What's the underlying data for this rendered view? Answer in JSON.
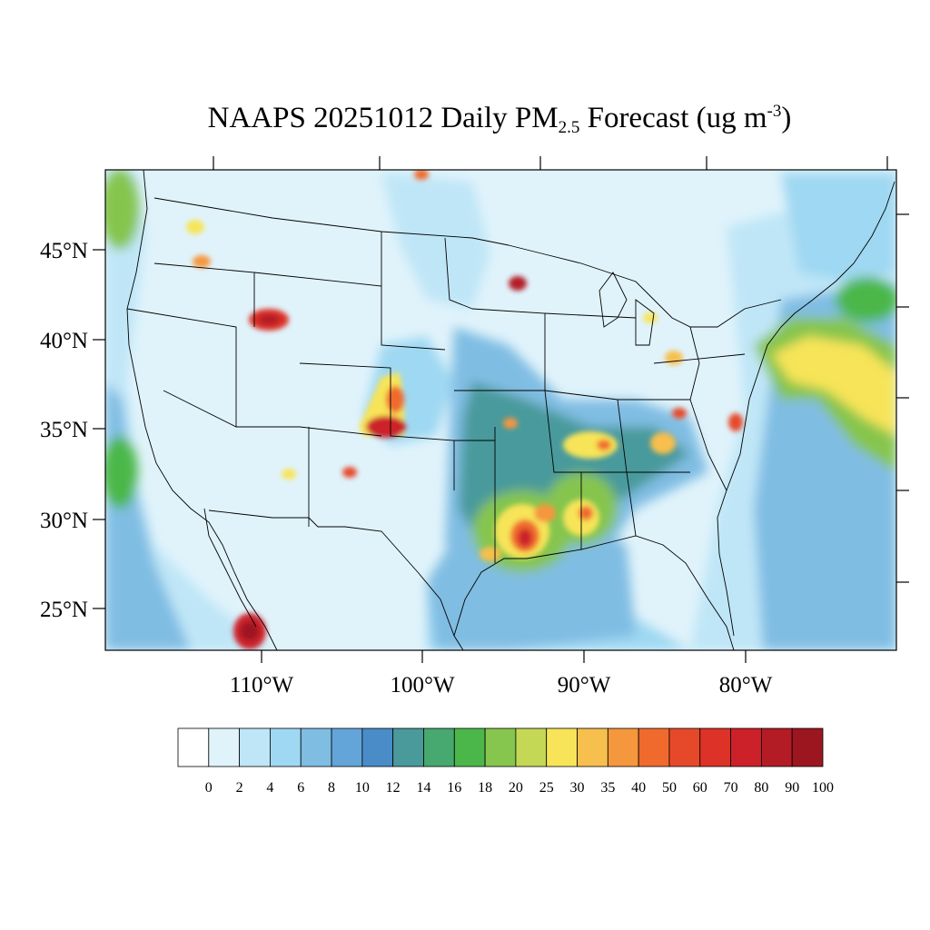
{
  "title": {
    "prefix": "NAAPS 20251012 Daily PM",
    "pm_subscript": "2.5",
    "middle": " Forecast (ug m",
    "unit_superscript": "-3",
    "suffix": ")"
  },
  "lat_labels": [
    "45°N",
    "40°N",
    "35°N",
    "30°N",
    "25°N"
  ],
  "lon_labels": [
    "110°W",
    "100°W",
    "90°W",
    "80°W"
  ],
  "colorbar": {
    "labels": [
      "0",
      "2",
      "4",
      "6",
      "8",
      "10",
      "12",
      "14",
      "16",
      "18",
      "20",
      "25",
      "30",
      "35",
      "40",
      "50",
      "60",
      "70",
      "80",
      "90",
      "100"
    ],
    "colors": [
      "#ffffff",
      "#e0f3fb",
      "#bfe6f7",
      "#9fd8f2",
      "#80bde3",
      "#63a5d8",
      "#4a8cc8",
      "#4a9a9c",
      "#47a870",
      "#4bb74a",
      "#86c54e",
      "#c4d855",
      "#f7e458",
      "#f7bf4d",
      "#f5973d",
      "#f06a2e",
      "#e6492a",
      "#dc3227",
      "#cc2129",
      "#b31b25",
      "#9c1620"
    ]
  }
}
